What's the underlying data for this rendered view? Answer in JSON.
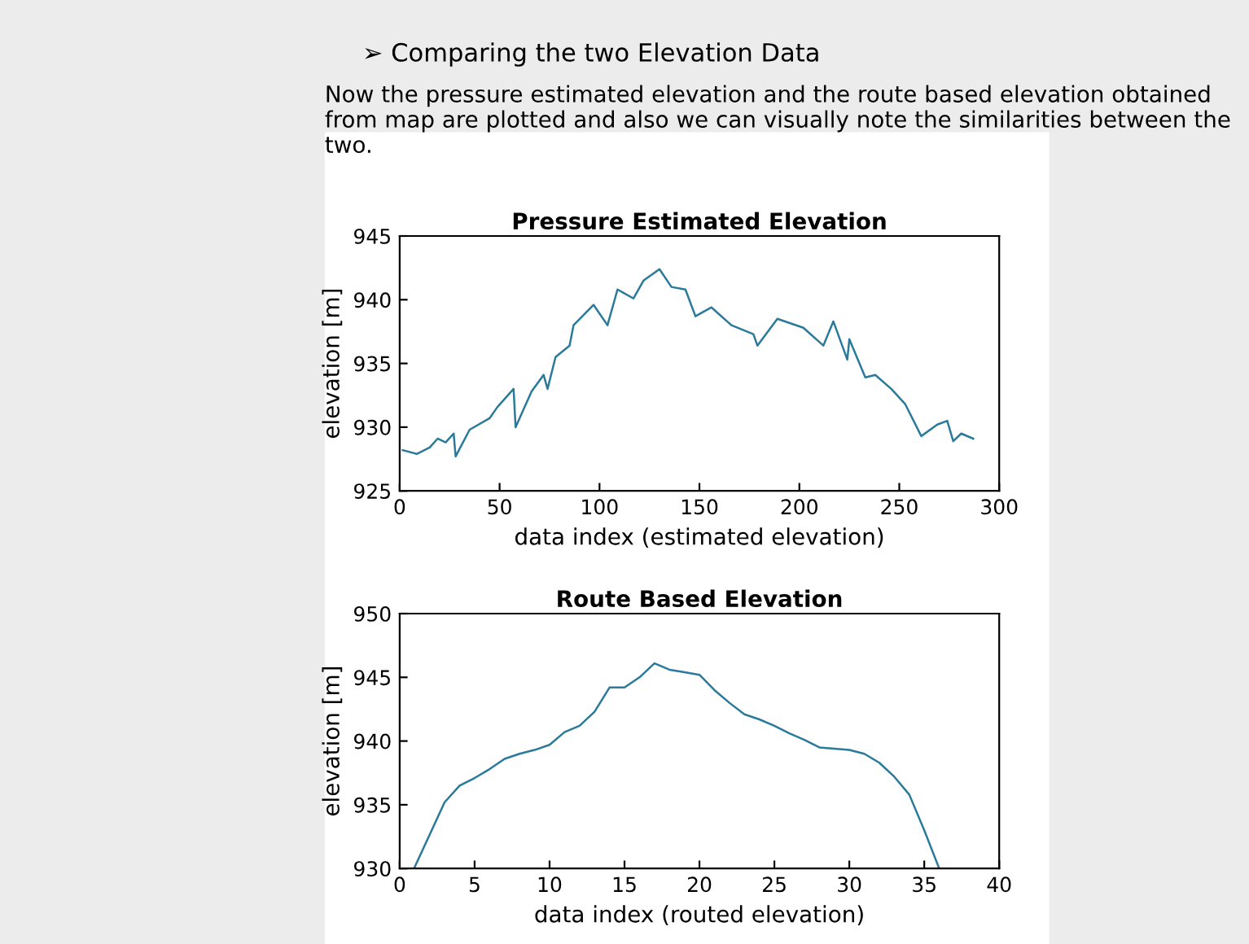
{
  "chart_data": [
    {
      "type": "line",
      "title": "Pressure Estimated Elevation",
      "xlabel": "data index (estimated elevation)",
      "ylabel": "elevation [m]",
      "annotations": [
        "➢ Comparing the two Elevation Data",
        "Now the pressure estimated elevation and the route based elevation obtained from map are plotted and also we can visually note the similarities between the two."
      ],
      "xlim": [
        0,
        300
      ],
      "ylim": [
        925,
        945
      ],
      "xticks": [
        0,
        50,
        100,
        150,
        200,
        250,
        300
      ],
      "yticks": [
        925,
        930,
        935,
        940,
        945
      ],
      "grid": false,
      "legend": false,
      "series": [
        {
          "color": "#2a7a9a",
          "x": [
            1.5,
            8.5,
            15,
            19,
            23,
            27,
            28,
            35,
            45,
            49,
            57,
            58,
            66,
            72,
            74,
            78,
            85,
            87,
            97,
            104,
            109,
            117,
            122,
            130,
            136,
            143,
            148,
            156,
            166,
            177,
            179,
            189,
            202,
            212,
            217,
            224,
            225,
            233,
            238,
            246,
            253,
            261,
            269,
            274,
            277,
            281,
            287
          ],
          "values": [
            928.2,
            927.9,
            928.4,
            929.1,
            928.8,
            929.5,
            927.7,
            929.8,
            930.7,
            931.6,
            933,
            930,
            932.8,
            934.1,
            933,
            935.5,
            936.4,
            938,
            939.6,
            938,
            940.8,
            940.1,
            941.5,
            942.4,
            941,
            940.8,
            938.7,
            939.4,
            938,
            937.3,
            936.4,
            938.5,
            937.8,
            936.4,
            938.3,
            935.3,
            936.9,
            933.9,
            934.1,
            933,
            931.8,
            929.3,
            930.2,
            930.5,
            928.9,
            929.5,
            929.1
          ]
        }
      ]
    },
    {
      "type": "line",
      "title": "Route Based Elevation",
      "xlabel": "data index (routed elevation)",
      "ylabel": "elevation [m]",
      "xlim": [
        0,
        40
      ],
      "ylim": [
        930,
        950
      ],
      "xticks": [
        0,
        5,
        10,
        15,
        20,
        25,
        30,
        35,
        40
      ],
      "yticks": [
        930,
        935,
        940,
        945,
        950
      ],
      "grid": false,
      "legend": false,
      "series": [
        {
          "color": "#2a7a9a",
          "x": [
            1,
            3,
            4,
            5,
            6,
            7,
            8,
            9,
            10,
            11,
            12,
            13,
            14,
            15,
            16,
            17,
            18,
            19,
            20,
            21,
            22,
            23,
            24,
            25,
            26,
            27,
            28,
            29,
            30,
            31,
            32,
            33,
            34,
            35,
            36
          ],
          "values": [
            930.1,
            935.2,
            936.5,
            937.1,
            937.8,
            938.6,
            939.0,
            939.3,
            939.7,
            940.7,
            941.2,
            942.3,
            944.2,
            944.2,
            945.0,
            946.1,
            945.6,
            945.4,
            945.2,
            944.0,
            943.0,
            942.1,
            941.7,
            941.2,
            940.6,
            940.1,
            939.5,
            939.4,
            939.3,
            939.0,
            938.3,
            937.2,
            935.8,
            933.0,
            930.0
          ]
        }
      ]
    }
  ]
}
